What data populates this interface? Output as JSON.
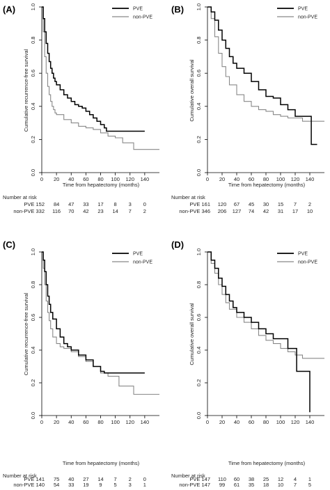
{
  "chart_data": [
    {
      "type": "line",
      "panel_label": "(A)",
      "ylabel": "Cumulative recurrence-free survival",
      "xlabel": "Time from hepatectomy (months)",
      "xticks": [
        0,
        20,
        40,
        60,
        80,
        100,
        120,
        140
      ],
      "yticks": [
        "0.0",
        "0.2",
        "0.4",
        "0.6",
        "0.8",
        "1.0"
      ],
      "xlim": [
        0,
        160
      ],
      "ylim": [
        0,
        1
      ],
      "legend_position": "top-right",
      "series": [
        {
          "name": "PVE",
          "color": "#000000",
          "points": [
            [
              0,
              1.0
            ],
            [
              2,
              0.93
            ],
            [
              4,
              0.85
            ],
            [
              6,
              0.78
            ],
            [
              8,
              0.72
            ],
            [
              10,
              0.67
            ],
            [
              12,
              0.63
            ],
            [
              14,
              0.6
            ],
            [
              16,
              0.57
            ],
            [
              18,
              0.55
            ],
            [
              20,
              0.53
            ],
            [
              25,
              0.5
            ],
            [
              30,
              0.47
            ],
            [
              35,
              0.45
            ],
            [
              40,
              0.43
            ],
            [
              45,
              0.41
            ],
            [
              50,
              0.4
            ],
            [
              55,
              0.39
            ],
            [
              60,
              0.37
            ],
            [
              65,
              0.35
            ],
            [
              70,
              0.33
            ],
            [
              75,
              0.31
            ],
            [
              80,
              0.29
            ],
            [
              85,
              0.27
            ],
            [
              88,
              0.25
            ],
            [
              100,
              0.25
            ],
            [
              140,
              0.25
            ]
          ]
        },
        {
          "name": "non-PVE",
          "color": "#888888",
          "points": [
            [
              0,
              1.0
            ],
            [
              2,
              0.85
            ],
            [
              4,
              0.7
            ],
            [
              6,
              0.6
            ],
            [
              8,
              0.52
            ],
            [
              10,
              0.47
            ],
            [
              12,
              0.43
            ],
            [
              14,
              0.4
            ],
            [
              16,
              0.38
            ],
            [
              18,
              0.36
            ],
            [
              20,
              0.35
            ],
            [
              30,
              0.32
            ],
            [
              40,
              0.3
            ],
            [
              50,
              0.28
            ],
            [
              60,
              0.27
            ],
            [
              70,
              0.26
            ],
            [
              80,
              0.24
            ],
            [
              90,
              0.22
            ],
            [
              100,
              0.21
            ],
            [
              110,
              0.18
            ],
            [
              120,
              0.18
            ],
            [
              125,
              0.14
            ],
            [
              160,
              0.14
            ]
          ]
        }
      ],
      "risk_table": {
        "title": "Number at risk",
        "rows": [
          {
            "label": "PVE 152",
            "values": [
              "84",
              "47",
              "33",
              "17",
              "8",
              "3",
              "0"
            ]
          },
          {
            "label": "non-PVE 332",
            "values": [
              "116",
              "70",
              "42",
              "23",
              "14",
              "7",
              "2"
            ]
          }
        ]
      }
    },
    {
      "type": "line",
      "panel_label": "(B)",
      "ylabel": "Cumulative overall survival",
      "xlabel": "Time from hepatectomy (months)",
      "xticks": [
        0,
        20,
        40,
        60,
        80,
        100,
        120,
        140
      ],
      "yticks": [
        "0.0",
        "0.2",
        "0.4",
        "0.6",
        "0.8",
        "1.0"
      ],
      "xlim": [
        0,
        160
      ],
      "ylim": [
        0,
        1
      ],
      "legend_position": "top-right",
      "series": [
        {
          "name": "PVE",
          "color": "#000000",
          "points": [
            [
              0,
              1.0
            ],
            [
              5,
              0.97
            ],
            [
              10,
              0.92
            ],
            [
              15,
              0.86
            ],
            [
              20,
              0.8
            ],
            [
              25,
              0.75
            ],
            [
              30,
              0.7
            ],
            [
              35,
              0.66
            ],
            [
              40,
              0.63
            ],
            [
              50,
              0.6
            ],
            [
              60,
              0.55
            ],
            [
              70,
              0.5
            ],
            [
              80,
              0.46
            ],
            [
              90,
              0.45
            ],
            [
              100,
              0.41
            ],
            [
              110,
              0.38
            ],
            [
              120,
              0.34
            ],
            [
              140,
              0.34
            ],
            [
              142,
              0.17
            ],
            [
              150,
              0.17
            ]
          ]
        },
        {
          "name": "non-PVE",
          "color": "#888888",
          "points": [
            [
              0,
              1.0
            ],
            [
              5,
              0.93
            ],
            [
              10,
              0.82
            ],
            [
              15,
              0.72
            ],
            [
              20,
              0.64
            ],
            [
              25,
              0.58
            ],
            [
              30,
              0.53
            ],
            [
              40,
              0.47
            ],
            [
              50,
              0.43
            ],
            [
              60,
              0.4
            ],
            [
              70,
              0.38
            ],
            [
              80,
              0.37
            ],
            [
              90,
              0.35
            ],
            [
              100,
              0.34
            ],
            [
              110,
              0.33
            ],
            [
              120,
              0.33
            ],
            [
              130,
              0.31
            ],
            [
              160,
              0.31
            ]
          ]
        }
      ],
      "risk_table": {
        "title": "Number at risk",
        "rows": [
          {
            "label": "PVE 161",
            "values": [
              "120",
              "67",
              "45",
              "30",
              "15",
              "7",
              "2"
            ]
          },
          {
            "label": "non-PVE 346",
            "values": [
              "206",
              "127",
              "74",
              "42",
              "31",
              "17",
              "10"
            ]
          }
        ]
      }
    },
    {
      "type": "line",
      "panel_label": "(C)",
      "ylabel": "Cumulative recurrence-free survival",
      "xlabel": "Time from hepatectomy (months)",
      "xticks": [
        0,
        20,
        40,
        60,
        80,
        100,
        120,
        140
      ],
      "yticks": [
        "0.0",
        "0.2",
        "0.4",
        "0.6",
        "0.8",
        "1.0"
      ],
      "xlim": [
        0,
        160
      ],
      "ylim": [
        0,
        1
      ],
      "legend_position": "top-right",
      "series": [
        {
          "name": "PVE",
          "color": "#000000",
          "points": [
            [
              0,
              1.0
            ],
            [
              2,
              0.95
            ],
            [
              4,
              0.88
            ],
            [
              6,
              0.8
            ],
            [
              8,
              0.73
            ],
            [
              10,
              0.68
            ],
            [
              12,
              0.63
            ],
            [
              15,
              0.59
            ],
            [
              20,
              0.53
            ],
            [
              25,
              0.48
            ],
            [
              30,
              0.44
            ],
            [
              35,
              0.42
            ],
            [
              40,
              0.4
            ],
            [
              50,
              0.37
            ],
            [
              60,
              0.34
            ],
            [
              70,
              0.3
            ],
            [
              80,
              0.27
            ],
            [
              85,
              0.26
            ],
            [
              100,
              0.26
            ],
            [
              140,
              0.26
            ]
          ]
        },
        {
          "name": "non-PVE",
          "color": "#888888",
          "points": [
            [
              0,
              1.0
            ],
            [
              2,
              0.9
            ],
            [
              4,
              0.8
            ],
            [
              6,
              0.7
            ],
            [
              8,
              0.63
            ],
            [
              10,
              0.58
            ],
            [
              12,
              0.53
            ],
            [
              15,
              0.48
            ],
            [
              20,
              0.44
            ],
            [
              25,
              0.42
            ],
            [
              30,
              0.41
            ],
            [
              40,
              0.39
            ],
            [
              50,
              0.36
            ],
            [
              60,
              0.33
            ],
            [
              70,
              0.3
            ],
            [
              80,
              0.26
            ],
            [
              90,
              0.24
            ],
            [
              100,
              0.24
            ],
            [
              105,
              0.18
            ],
            [
              120,
              0.18
            ],
            [
              125,
              0.13
            ],
            [
              160,
              0.13
            ]
          ]
        }
      ],
      "risk_table": {
        "title": "Number at risk",
        "rows": [
          {
            "label": "PVE 141",
            "values": [
              "75",
              "40",
              "27",
              "14",
              "7",
              "2",
              "0"
            ]
          },
          {
            "label": "non-PVE 140",
            "values": [
              "54",
              "33",
              "19",
              "9",
              "5",
              "3",
              "1"
            ]
          }
        ]
      }
    },
    {
      "type": "line",
      "panel_label": "(D)",
      "ylabel": "Cumulative overall survival",
      "xlabel": "Time from hepatectomy (months)",
      "xticks": [
        0,
        20,
        40,
        60,
        80,
        100,
        120,
        140
      ],
      "yticks": [
        "0.0",
        "0.2",
        "0.4",
        "0.6",
        "0.8",
        "1.0"
      ],
      "xlim": [
        0,
        160
      ],
      "ylim": [
        0,
        1
      ],
      "legend_position": "top-right",
      "series": [
        {
          "name": "PVE",
          "color": "#000000",
          "points": [
            [
              0,
              1.0
            ],
            [
              5,
              0.95
            ],
            [
              10,
              0.9
            ],
            [
              15,
              0.84
            ],
            [
              20,
              0.79
            ],
            [
              25,
              0.74
            ],
            [
              30,
              0.7
            ],
            [
              35,
              0.66
            ],
            [
              40,
              0.63
            ],
            [
              50,
              0.6
            ],
            [
              60,
              0.57
            ],
            [
              70,
              0.53
            ],
            [
              80,
              0.5
            ],
            [
              90,
              0.47
            ],
            [
              100,
              0.47
            ],
            [
              110,
              0.41
            ],
            [
              120,
              0.41
            ],
            [
              122,
              0.27
            ],
            [
              138,
              0.27
            ],
            [
              140,
              0.02
            ]
          ]
        },
        {
          "name": "non-PVE",
          "color": "#888888",
          "points": [
            [
              0,
              1.0
            ],
            [
              5,
              0.93
            ],
            [
              10,
              0.87
            ],
            [
              15,
              0.8
            ],
            [
              20,
              0.74
            ],
            [
              25,
              0.69
            ],
            [
              30,
              0.65
            ],
            [
              40,
              0.6
            ],
            [
              50,
              0.57
            ],
            [
              60,
              0.53
            ],
            [
              70,
              0.49
            ],
            [
              80,
              0.46
            ],
            [
              90,
              0.44
            ],
            [
              100,
              0.41
            ],
            [
              110,
              0.39
            ],
            [
              120,
              0.37
            ],
            [
              130,
              0.35
            ],
            [
              160,
              0.35
            ]
          ]
        }
      ],
      "risk_table": {
        "title": "Number at risk",
        "rows": [
          {
            "label": "PVE 147",
            "values": [
              "110",
              "60",
              "38",
              "25",
              "12",
              "4",
              "1"
            ]
          },
          {
            "label": "non-PVE 147",
            "values": [
              "99",
              "61",
              "35",
              "18",
              "10",
              "7",
              "5"
            ]
          }
        ]
      }
    }
  ]
}
